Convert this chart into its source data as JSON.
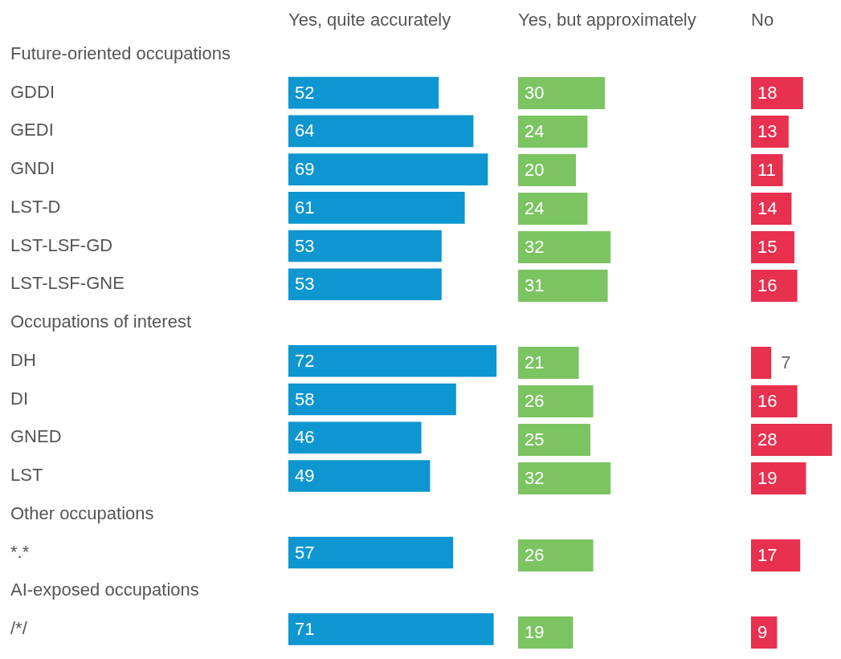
{
  "chart_data": [
    {
      "type": "bar",
      "orientation": "horizontal",
      "data_labels": true,
      "tick_labels": "y",
      "categories": [
        "Future-oriented occupations",
        "GDDI",
        "GEDI",
        "GNDI",
        "LST-D",
        "LST-LSF-GD",
        "LST-LSF-GNE",
        "Occupations of interest",
        "DH",
        "DI",
        "GNED",
        "LST",
        "Other occupations",
        "*.*",
        "AI-exposed occupations",
        "/*/"
      ],
      "series": [
        {
          "name": "Yes, quite accurately",
          "color": "#0e96d0",
          "values": [
            null,
            52,
            64,
            69,
            61,
            53,
            53,
            null,
            72,
            58,
            46,
            49,
            null,
            57,
            null,
            71
          ]
        }
      ]
    },
    {
      "type": "bar",
      "orientation": "horizontal",
      "data_labels": true,
      "tick_labels": false,
      "categories": [
        null,
        null,
        null,
        null,
        null,
        null,
        null,
        null,
        null,
        null,
        null,
        null,
        null,
        null,
        null,
        null
      ],
      "series": [
        {
          "name": "Yes, but approximately",
          "color": "#7cc462",
          "values": [
            null,
            30,
            24,
            20,
            24,
            32,
            31,
            null,
            21,
            26,
            25,
            32,
            null,
            26,
            null,
            19
          ]
        }
      ]
    },
    {
      "type": "bar",
      "orientation": "horizontal",
      "data_labels": true,
      "tick_labels": false,
      "categories": [
        null,
        null,
        null,
        null,
        null,
        null,
        null,
        null,
        null,
        null,
        null,
        null,
        null,
        null,
        null,
        null
      ],
      "series": [
        {
          "name": "No",
          "color": "#e8304f",
          "values": [
            null,
            18,
            13,
            11,
            14,
            15,
            16,
            null,
            7,
            16,
            28,
            19,
            null,
            17,
            null,
            9
          ]
        }
      ]
    }
  ]
}
